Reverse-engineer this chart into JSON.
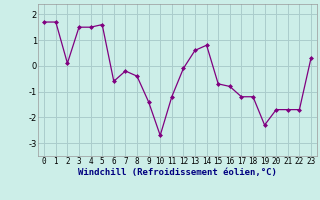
{
  "x": [
    0,
    1,
    2,
    3,
    4,
    5,
    6,
    7,
    8,
    9,
    10,
    11,
    12,
    13,
    14,
    15,
    16,
    17,
    18,
    19,
    20,
    21,
    22,
    23
  ],
  "y": [
    1.7,
    1.7,
    0.1,
    1.5,
    1.5,
    1.6,
    -0.6,
    -0.2,
    -0.4,
    -1.4,
    -2.7,
    -1.2,
    -0.1,
    0.6,
    0.8,
    -0.7,
    -0.8,
    -1.2,
    -1.2,
    -2.3,
    -1.7,
    -1.7,
    -1.7,
    0.3
  ],
  "line_color": "#800080",
  "marker": "D",
  "markersize": 2.0,
  "linewidth": 0.9,
  "xlabel": "Windchill (Refroidissement éolien,°C)",
  "xlabel_fontsize": 6.5,
  "ytick_labels": [
    "-3",
    "-2",
    "-1",
    "0",
    "1",
    "2"
  ],
  "ytick_values": [
    -3,
    -2,
    -1,
    0,
    1,
    2
  ],
  "ylim": [
    -3.5,
    2.4
  ],
  "xlim": [
    -0.5,
    23.5
  ],
  "bg_color": "#cceee8",
  "grid_color": "#aacccc",
  "tick_fontsize": 5.5,
  "xlabel_color": "#000080"
}
